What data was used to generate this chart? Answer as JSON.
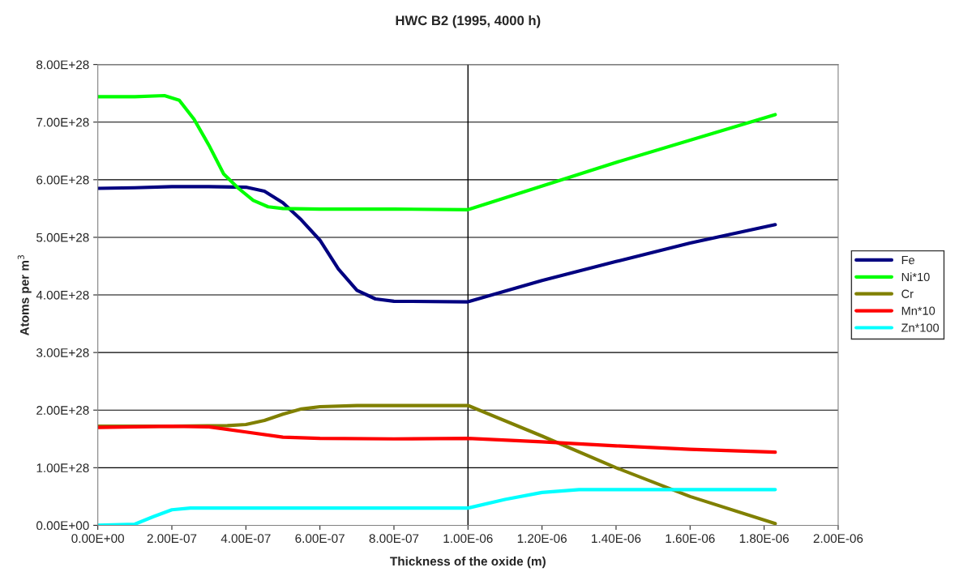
{
  "chart_data": {
    "type": "line",
    "title": "HWC B2 (1995, 4000 h)",
    "xlabel": "Thickness of the oxide (m)",
    "ylabel": "Atoms per m$^{3}$",
    "xlim": [
      0,
      2e-06
    ],
    "ylim": [
      0,
      8e+28
    ],
    "xticks": [
      {
        "value": 0,
        "label": "0.00E+00"
      },
      {
        "value": 2e-07,
        "label": "2.00E-07"
      },
      {
        "value": 4e-07,
        "label": "4.00E-07"
      },
      {
        "value": 6e-07,
        "label": "6.00E-07"
      },
      {
        "value": 8e-07,
        "label": "8.00E-07"
      },
      {
        "value": 1e-06,
        "label": "1.00E-06"
      },
      {
        "value": 1.2e-06,
        "label": "1.20E-06"
      },
      {
        "value": 1.4e-06,
        "label": "1.40E-06"
      },
      {
        "value": 1.6e-06,
        "label": "1.60E-06"
      },
      {
        "value": 1.8e-06,
        "label": "1.80E-06"
      },
      {
        "value": 2e-06,
        "label": "2.00E-06"
      }
    ],
    "yticks": [
      {
        "value": 0,
        "label": "0.00E+00"
      },
      {
        "value": 1e+28,
        "label": "1.00E+28"
      },
      {
        "value": 2e+28,
        "label": "2.00E+28"
      },
      {
        "value": 3e+28,
        "label": "3.00E+28"
      },
      {
        "value": 4e+28,
        "label": "4.00E+28"
      },
      {
        "value": 5e+28,
        "label": "5.00E+28"
      },
      {
        "value": 6e+28,
        "label": "6.00E+28"
      },
      {
        "value": 7e+28,
        "label": "7.00E+28"
      },
      {
        "value": 8e+28,
        "label": "8.00E+28"
      }
    ],
    "grid": "y",
    "legend": "right",
    "marker": "none",
    "line_style": "solid",
    "ref_lines": [
      {
        "axis": "x",
        "value": 1e-06,
        "color": "#000000"
      }
    ],
    "series": [
      {
        "name": "Fe",
        "color": "#000080",
        "x": [
          0,
          1e-07,
          2e-07,
          3e-07,
          4e-07,
          4.5e-07,
          5e-07,
          5.5e-07,
          6e-07,
          6.5e-07,
          7e-07,
          7.5e-07,
          8e-07,
          1e-06,
          1.2e-06,
          1.4e-06,
          1.6e-06,
          1.83e-06
        ],
        "values": [
          5.85e+28,
          5.86e+28,
          5.88e+28,
          5.88e+28,
          5.87e+28,
          5.8e+28,
          5.6e+28,
          5.3e+28,
          4.95e+28,
          4.45e+28,
          4.08e+28,
          3.93e+28,
          3.89e+28,
          3.88e+28,
          4.25e+28,
          4.58e+28,
          4.9e+28,
          5.22e+28
        ]
      },
      {
        "name": "Ni*10",
        "color": "#00ff00",
        "x": [
          0,
          1e-07,
          1.8e-07,
          2.2e-07,
          2.6e-07,
          3e-07,
          3.4e-07,
          3.8e-07,
          4.2e-07,
          4.6e-07,
          5e-07,
          6e-07,
          8e-07,
          1e-06,
          1.4e-06,
          1.83e-06
        ],
        "values": [
          7.44e+28,
          7.44e+28,
          7.46e+28,
          7.38e+28,
          7.05e+28,
          6.6e+28,
          6.1e+28,
          5.85e+28,
          5.64e+28,
          5.53e+28,
          5.5e+28,
          5.49e+28,
          5.49e+28,
          5.48e+28,
          6.3e+28,
          7.13e+28
        ]
      },
      {
        "name": "Cr",
        "color": "#808000",
        "x": [
          0,
          2e-07,
          3.5e-07,
          4e-07,
          4.5e-07,
          5e-07,
          5.5e-07,
          6e-07,
          7e-07,
          1e-06,
          1.2e-06,
          1.4e-06,
          1.6e-06,
          1.83e-06
        ],
        "values": [
          1.72e+28,
          1.72e+28,
          1.73e+28,
          1.75e+28,
          1.82e+28,
          1.93e+28,
          2.02e+28,
          2.06e+28,
          2.08e+28,
          2.08e+28,
          1.55e+28,
          1e+28,
          5e+27,
          3e+26
        ]
      },
      {
        "name": "Mn*10",
        "color": "#ff0000",
        "x": [
          0,
          2e-07,
          3e-07,
          4e-07,
          5e-07,
          6e-07,
          8e-07,
          1e-06,
          1.2e-06,
          1.4e-06,
          1.6e-06,
          1.83e-06
        ],
        "values": [
          1.7e+28,
          1.72e+28,
          1.71e+28,
          1.62e+28,
          1.53e+28,
          1.51e+28,
          1.5e+28,
          1.51e+28,
          1.45e+28,
          1.38e+28,
          1.32e+28,
          1.27e+28
        ]
      },
      {
        "name": "Zn*100",
        "color": "#00ffff",
        "x": [
          0,
          1e-07,
          1.5e-07,
          2e-07,
          2.5e-07,
          3e-07,
          1e-06,
          1.1e-06,
          1.2e-06,
          1.3e-06,
          1.83e-06
        ],
        "values": [
          0,
          2e+26,
          1.5e+27,
          2.7e+27,
          3e+27,
          3e+27,
          3e+27,
          4.5e+27,
          5.7e+27,
          6.2e+27,
          6.2e+27
        ]
      }
    ]
  }
}
